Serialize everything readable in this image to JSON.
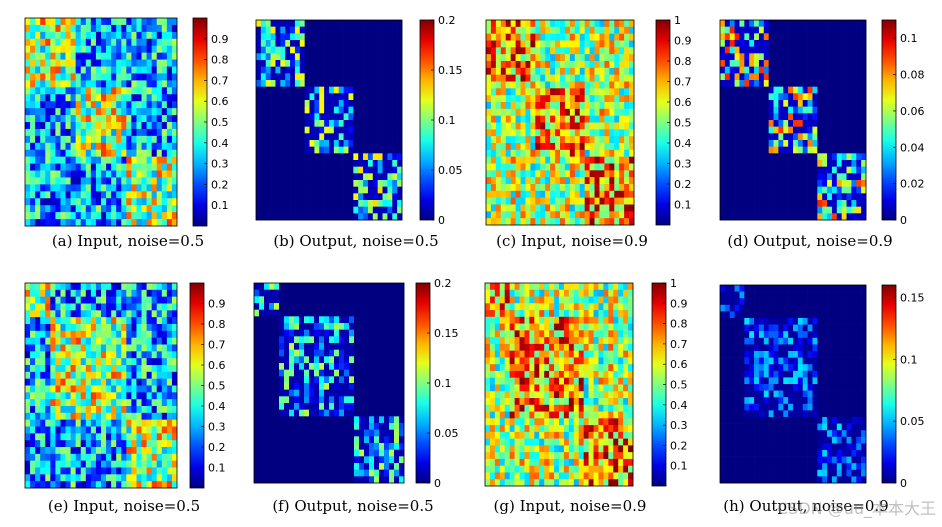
{
  "figure": {
    "watermark": "CSDN @uu_本本大王"
  },
  "chart_data": [
    {
      "type": "heatmap",
      "caption": "(a) Input, noise=0.5",
      "clim": [
        0,
        1
      ],
      "colorbar_ticks": [
        0.1,
        0.2,
        0.3,
        0.4,
        0.5,
        0.6,
        0.7,
        0.8,
        0.9
      ],
      "colorbar_tick_labels": [
        "0.1",
        "0.2",
        "0.3",
        "0.4",
        "0.5",
        "0.6",
        "0.7",
        "0.8",
        "0.9"
      ],
      "colormap": "jet",
      "block_sizes": [
        1,
        1,
        1
      ],
      "block_mean": 0.55,
      "background_mean": 0.3
    },
    {
      "type": "heatmap",
      "caption": "(b) Output, noise=0.5",
      "clim": [
        0,
        0.2
      ],
      "colorbar_ticks": [
        0,
        0.05,
        0.1,
        0.15,
        0.2
      ],
      "colorbar_tick_labels": [
        "0",
        "0.05",
        "0.1",
        "0.15",
        "0.2"
      ],
      "colormap": "jet",
      "block_sizes": [
        1,
        1,
        1
      ],
      "block_mean": 0.07,
      "background_mean": 0
    },
    {
      "type": "heatmap",
      "caption": "(c) Input, noise=0.9",
      "clim": [
        0,
        1
      ],
      "colorbar_ticks": [
        0.1,
        0.2,
        0.3,
        0.4,
        0.5,
        0.6,
        0.7,
        0.8,
        0.9,
        1
      ],
      "colorbar_tick_labels": [
        "0.1",
        "0.2",
        "0.3",
        "0.4",
        "0.5",
        "0.6",
        "0.7",
        "0.8",
        "0.9",
        "1"
      ],
      "colormap": "jet",
      "block_sizes": [
        1,
        1,
        1
      ],
      "block_mean": 0.72,
      "background_mean": 0.55
    },
    {
      "type": "heatmap",
      "caption": "(d) Output, noise=0.9",
      "clim": [
        0,
        0.11
      ],
      "colorbar_ticks": [
        0,
        0.02,
        0.04,
        0.06,
        0.08,
        0.1
      ],
      "colorbar_tick_labels": [
        "0",
        "0.02",
        "0.04",
        "0.06",
        "0.08",
        "0.1"
      ],
      "colormap": "jet",
      "block_sizes": [
        1,
        1,
        1
      ],
      "block_mean": 0.05,
      "background_mean": 0
    },
    {
      "type": "heatmap",
      "caption": "(e) Input, noise=0.5",
      "clim": [
        0,
        1
      ],
      "colorbar_ticks": [
        0.1,
        0.2,
        0.3,
        0.4,
        0.5,
        0.6,
        0.7,
        0.8,
        0.9
      ],
      "colorbar_tick_labels": [
        "0.1",
        "0.2",
        "0.3",
        "0.4",
        "0.5",
        "0.6",
        "0.7",
        "0.8",
        "0.9"
      ],
      "colormap": "jet",
      "block_sizes": [
        1,
        3,
        2
      ],
      "block_mean": 0.55,
      "background_mean": 0.3
    },
    {
      "type": "heatmap",
      "caption": "(f) Output, noise=0.5",
      "clim": [
        0,
        0.2
      ],
      "colorbar_ticks": [
        0,
        0.05,
        0.1,
        0.15,
        0.2
      ],
      "colorbar_tick_labels": [
        "0",
        "0.05",
        "0.1",
        "0.15",
        "0.2"
      ],
      "colormap": "jet",
      "block_sizes": [
        1,
        3,
        2
      ],
      "block_mean": 0.06,
      "background_mean": 0
    },
    {
      "type": "heatmap",
      "caption": "(g) Input, noise=0.9",
      "clim": [
        0,
        1
      ],
      "colorbar_ticks": [
        0.1,
        0.2,
        0.3,
        0.4,
        0.5,
        0.6,
        0.7,
        0.8,
        0.9,
        1
      ],
      "colorbar_tick_labels": [
        "0.1",
        "0.2",
        "0.3",
        "0.4",
        "0.5",
        "0.6",
        "0.7",
        "0.8",
        "0.9",
        "1"
      ],
      "colormap": "jet",
      "block_sizes": [
        1,
        3,
        2
      ],
      "block_mean": 0.72,
      "background_mean": 0.55
    },
    {
      "type": "heatmap",
      "caption": "(h) Output, noise=0.9",
      "clim": [
        0,
        0.16
      ],
      "colorbar_ticks": [
        0,
        0.05,
        0.1,
        0.15
      ],
      "colorbar_tick_labels": [
        "0",
        "0.05",
        "0.1",
        "0.15"
      ],
      "colormap": "jet",
      "block_sizes": [
        1,
        3,
        2
      ],
      "block_mean": 0.03,
      "background_mean": 0
    }
  ]
}
